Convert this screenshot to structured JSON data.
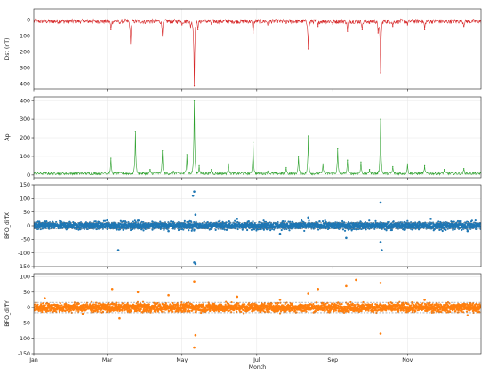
{
  "chart_data": [
    {
      "type": "line",
      "ylabel": "Dst (nT)",
      "xlabel": "",
      "color": "#d62728",
      "ylim": [
        -430,
        70
      ],
      "yticks": [
        0,
        -100,
        -200,
        -300,
        -400
      ],
      "grid": true,
      "series": [
        {
          "x": [
            "2024-01-01",
            "2024-01-15",
            "2024-01-29",
            "2024-02-12",
            "2024-02-26",
            "2024-03-04",
            "2024-03-11",
            "2024-03-20",
            "2024-04-01",
            "2024-04-15",
            "2024-05-01",
            "2024-05-08",
            "2024-05-11",
            "2024-05-14",
            "2024-05-25",
            "2024-06-10",
            "2024-06-28",
            "2024-07-10",
            "2024-07-25",
            "2024-08-04",
            "2024-08-12",
            "2024-08-20",
            "2024-09-01",
            "2024-09-13",
            "2024-09-25",
            "2024-10-01",
            "2024-10-08",
            "2024-10-10",
            "2024-10-20",
            "2024-11-01",
            "2024-11-15",
            "2024-12-01",
            "2024-12-17",
            "2024-12-31"
          ],
          "values": [
            2,
            -5,
            -3,
            -10,
            -8,
            -60,
            -20,
            -150,
            -20,
            -100,
            -30,
            -50,
            -412,
            -60,
            -25,
            -10,
            -80,
            -30,
            -20,
            -5,
            -180,
            -40,
            -25,
            -70,
            -60,
            -20,
            -80,
            -330,
            -40,
            -30,
            -60,
            -15,
            -40,
            -10
          ]
        }
      ]
    },
    {
      "type": "line",
      "ylabel": "Ap",
      "xlabel": "",
      "color": "#2ca02c",
      "ylim": [
        -15,
        420
      ],
      "yticks": [
        0,
        100,
        200,
        300,
        400
      ],
      "grid": true,
      "series": [
        {
          "x": [
            "2024-01-01",
            "2024-01-20",
            "2024-02-10",
            "2024-02-28",
            "2024-03-04",
            "2024-03-11",
            "2024-03-24",
            "2024-04-05",
            "2024-04-15",
            "2024-04-24",
            "2024-05-05",
            "2024-05-11",
            "2024-05-15",
            "2024-05-25",
            "2024-06-08",
            "2024-06-28",
            "2024-07-10",
            "2024-07-25",
            "2024-08-04",
            "2024-08-12",
            "2024-08-24",
            "2024-09-05",
            "2024-09-13",
            "2024-09-24",
            "2024-10-01",
            "2024-10-10",
            "2024-10-20",
            "2024-11-01",
            "2024-11-15",
            "2024-12-01",
            "2024-12-17",
            "2024-12-31"
          ],
          "values": [
            5,
            8,
            6,
            15,
            90,
            15,
            235,
            30,
            130,
            20,
            110,
            400,
            50,
            30,
            60,
            175,
            20,
            40,
            100,
            210,
            60,
            140,
            80,
            70,
            30,
            300,
            45,
            60,
            50,
            30,
            35,
            10
          ]
        }
      ]
    },
    {
      "type": "scatter",
      "ylabel": "BFO_diffX",
      "xlabel": "",
      "color": "#1f77b4",
      "ylim": [
        -150,
        150
      ],
      "yticks": [
        150,
        100,
        50,
        0,
        -50,
        -100,
        -150
      ],
      "threshold_lines": [
        12,
        -12
      ],
      "grid": true,
      "series": [
        {
          "x": [
            "2024-01-10",
            "2024-02-05",
            "2024-03-01",
            "2024-03-10",
            "2024-03-26",
            "2024-04-20",
            "2024-05-10",
            "2024-05-11",
            "2024-05-11",
            "2024-05-12",
            "2024-05-12",
            "2024-06-15",
            "2024-07-20",
            "2024-08-12",
            "2024-09-12",
            "2024-10-10",
            "2024-10-10",
            "2024-10-11",
            "2024-11-20",
            "2024-12-20"
          ],
          "values": [
            15,
            -12,
            20,
            -90,
            18,
            -20,
            110,
            125,
            -135,
            -140,
            40,
            25,
            -30,
            30,
            -45,
            85,
            -60,
            -90,
            25,
            -20
          ]
        }
      ]
    },
    {
      "type": "scatter",
      "ylabel": "BFO_diffY",
      "xlabel": "Month",
      "color": "#ff7f0e",
      "ylim": [
        -150,
        110
      ],
      "yticks": [
        100,
        50,
        0,
        -50,
        -100,
        -150
      ],
      "threshold_lines": [
        17,
        -17
      ],
      "grid": true,
      "x_tick_labels": [
        "Jan",
        "Mar",
        "May",
        "Jul",
        "Sep",
        "Nov"
      ],
      "x_tick_dates": [
        "2024-01-01",
        "2024-03-01",
        "2024-05-01",
        "2024-07-01",
        "2024-09-01",
        "2024-11-01"
      ],
      "xlim": [
        "2024-01-01",
        "2024-12-31"
      ],
      "series": [
        {
          "x": [
            "2024-01-10",
            "2024-02-10",
            "2024-03-05",
            "2024-03-11",
            "2024-03-26",
            "2024-04-20",
            "2024-05-11",
            "2024-05-11",
            "2024-05-12",
            "2024-06-15",
            "2024-07-20",
            "2024-08-12",
            "2024-08-20",
            "2024-09-12",
            "2024-09-20",
            "2024-10-10",
            "2024-10-10",
            "2024-11-15",
            "2024-12-20"
          ],
          "values": [
            30,
            -20,
            60,
            -35,
            50,
            40,
            85,
            -130,
            -90,
            35,
            25,
            45,
            60,
            70,
            90,
            80,
            -85,
            25,
            -25
          ]
        }
      ]
    }
  ]
}
